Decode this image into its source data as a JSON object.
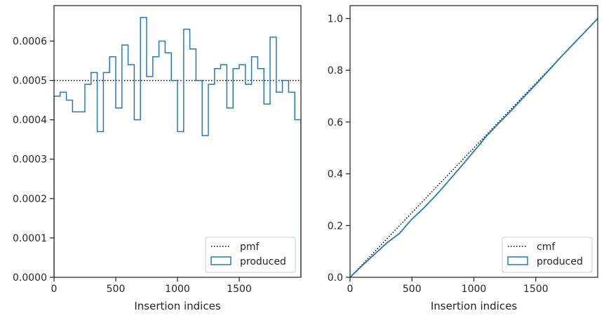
{
  "chart_data": [
    {
      "type": "step",
      "xlabel": "Insertion indices",
      "ylabel": "",
      "xlim": [
        0,
        2000
      ],
      "ylim": [
        0,
        0.00069
      ],
      "xticks": [
        0,
        500,
        1000,
        1500
      ],
      "xtick_labels": [
        "0",
        "500",
        "1000",
        "1500"
      ],
      "yticks": [
        0,
        0.0001,
        0.0002,
        0.0003,
        0.0004,
        0.0005,
        0.0006
      ],
      "ytick_labels": [
        "0.0000",
        "0.0001",
        "0.0002",
        "0.0003",
        "0.0004",
        "0.0005",
        "0.0006"
      ],
      "grid": false,
      "legend_position": "lower right",
      "legend": [
        "pmf",
        "produced"
      ],
      "reference_line": {
        "name": "pmf",
        "style": "dotted",
        "color": "#000000",
        "y": 0.0005
      },
      "series": [
        {
          "name": "produced",
          "style": "step-histogram",
          "color": "#2878b5",
          "bin_width": 50,
          "bin_starts": [
            0,
            50,
            100,
            150,
            200,
            250,
            300,
            350,
            400,
            450,
            500,
            550,
            600,
            650,
            700,
            750,
            800,
            850,
            900,
            950,
            1000,
            1050,
            1100,
            1150,
            1200,
            1250,
            1300,
            1350,
            1400,
            1450,
            1500,
            1550,
            1600,
            1650,
            1700,
            1750,
            1800,
            1850,
            1900,
            1950
          ],
          "values": [
            0.00046,
            0.00047,
            0.00045,
            0.00042,
            0.00042,
            0.00049,
            0.00052,
            0.00037,
            0.00052,
            0.00056,
            0.00043,
            0.00059,
            0.00054,
            0.0004,
            0.00066,
            0.00051,
            0.00056,
            0.0006,
            0.00057,
            0.0005,
            0.00037,
            0.00063,
            0.00058,
            0.0005,
            0.00036,
            0.00049,
            0.00053,
            0.00054,
            0.00043,
            0.00053,
            0.00054,
            0.00049,
            0.00056,
            0.00053,
            0.00044,
            0.00061,
            0.00047,
            0.0005,
            0.00047,
            0.0004
          ]
        }
      ]
    },
    {
      "type": "line",
      "xlabel": "Insertion indices",
      "ylabel": "",
      "xlim": [
        0,
        2000
      ],
      "ylim": [
        0,
        1.05
      ],
      "xticks": [
        0,
        500,
        1000,
        1500
      ],
      "xtick_labels": [
        "0",
        "500",
        "1000",
        "1500"
      ],
      "yticks": [
        0,
        0.2,
        0.4,
        0.6,
        0.8,
        1.0
      ],
      "ytick_labels": [
        "0.0",
        "0.2",
        "0.4",
        "0.6",
        "0.8",
        "1.0"
      ],
      "grid": false,
      "legend_position": "lower right",
      "legend": [
        "cmf",
        "produced"
      ],
      "series": [
        {
          "name": "cmf",
          "style": "dotted",
          "color": "#000000",
          "x": [
            0,
            2000
          ],
          "y": [
            0,
            1.0
          ]
        },
        {
          "name": "produced",
          "style": "solid",
          "color": "#2878b5",
          "x": [
            0,
            100,
            200,
            300,
            400,
            500,
            600,
            700,
            800,
            900,
            1000,
            1050,
            1100,
            1200,
            1300,
            1400,
            1500,
            1600,
            1700,
            1800,
            1900,
            2000
          ],
          "y": [
            0,
            0.046,
            0.09,
            0.134,
            0.17,
            0.225,
            0.27,
            0.32,
            0.375,
            0.43,
            0.487,
            0.515,
            0.545,
            0.595,
            0.643,
            0.695,
            0.745,
            0.797,
            0.85,
            0.9,
            0.95,
            1.0
          ]
        }
      ]
    }
  ]
}
